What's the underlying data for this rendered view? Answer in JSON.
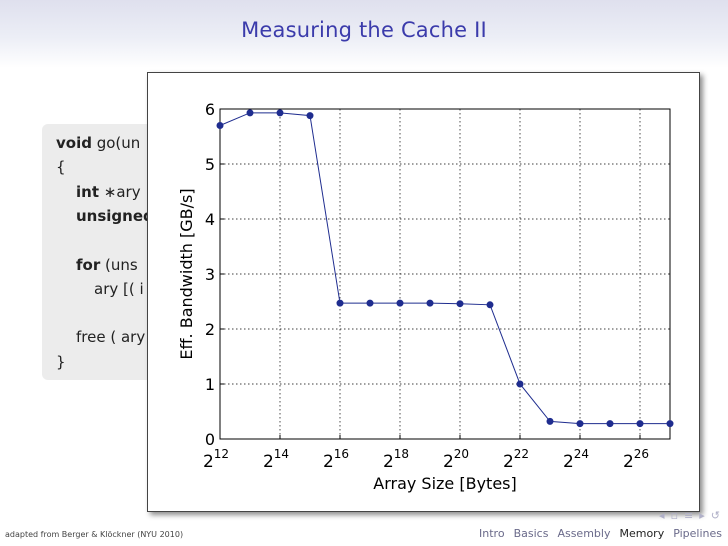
{
  "slide": {
    "title": "Measuring the Cache II",
    "footer_credit": "adapted from Berger & Klöckner (NYU 2010)",
    "nav_sections": [
      "Intro",
      "Basics",
      "Assembly",
      "Memory",
      "Pipelines"
    ],
    "active_section": "Memory",
    "nav_icons": [
      "prev-arrow-icon",
      "slide-icon",
      "section-icon",
      "next-arrow-icon",
      "search-icon"
    ]
  },
  "code": {
    "lines": [
      {
        "kw": "void",
        "rest": " go(un"
      },
      {
        "kw": "",
        "rest": "{"
      },
      {
        "kw": "int",
        "rest": " ∗ary"
      },
      {
        "kw": "unsigned",
        "rest": ""
      },
      {
        "kw": "",
        "rest": ""
      },
      {
        "kw": "for",
        "rest": " (uns"
      },
      {
        "kw": "",
        "rest": "ary [( i"
      },
      {
        "kw": "",
        "rest": ""
      },
      {
        "kw": "",
        "rest": "free ( ary"
      },
      {
        "kw": "",
        "rest": "}"
      }
    ]
  },
  "chart_data": {
    "type": "line",
    "title": "",
    "xlabel": "Array Size [Bytes]",
    "ylabel": "Eff. Bandwidth [GB/s]",
    "x_scale": "log2",
    "x_exponent_range": [
      12,
      27
    ],
    "x_tick_labels": [
      {
        "base": "2",
        "exp": "12"
      },
      {
        "base": "2",
        "exp": "14"
      },
      {
        "base": "2",
        "exp": "16"
      },
      {
        "base": "2",
        "exp": "18"
      },
      {
        "base": "2",
        "exp": "20"
      },
      {
        "base": "2",
        "exp": "22"
      },
      {
        "base": "2",
        "exp": "24"
      },
      {
        "base": "2",
        "exp": "26"
      }
    ],
    "ylim": [
      0,
      6
    ],
    "y_tick_labels": [
      "0",
      "1",
      "2",
      "3",
      "4",
      "5",
      "6"
    ],
    "grid": true,
    "series": [
      {
        "color": "#1f2d8f",
        "x": [
          4096,
          8192,
          16384,
          32768,
          65536,
          131072,
          262144,
          524288,
          1048576,
          2097152,
          4194304,
          8388608,
          16777216,
          33554432,
          67108864,
          134217728
        ],
        "y": [
          5.7,
          5.93,
          5.93,
          5.88,
          2.47,
          2.47,
          2.47,
          2.47,
          2.46,
          2.44,
          1.0,
          0.32,
          0.28,
          0.28,
          0.28,
          0.28
        ]
      }
    ]
  }
}
